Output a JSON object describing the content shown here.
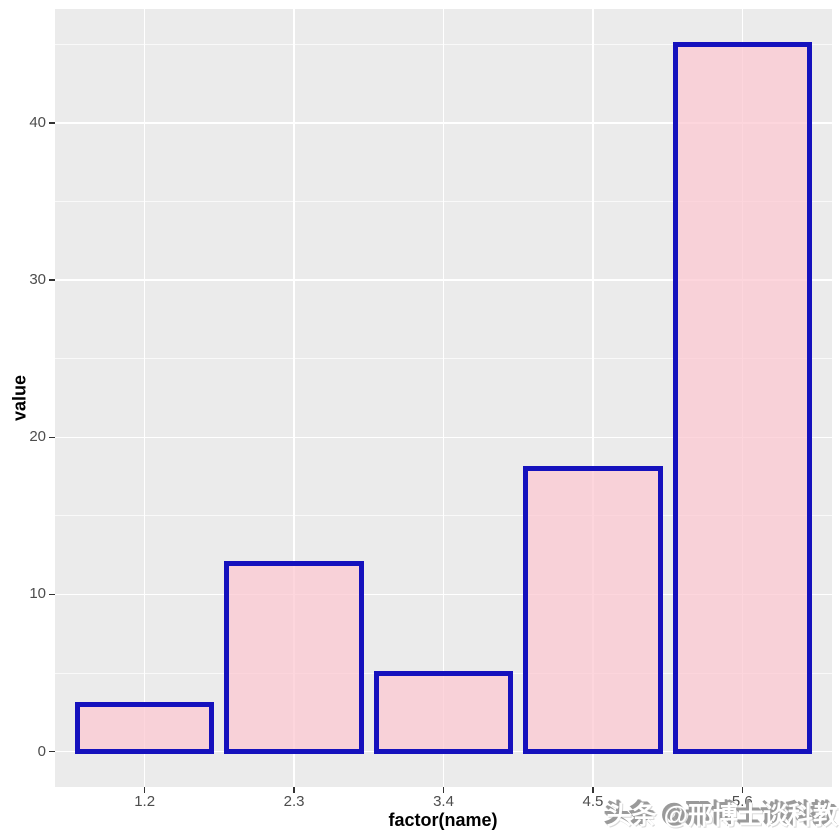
{
  "watermark": {
    "text": "头条 @邢博士谈科教"
  },
  "chart_data": {
    "type": "bar",
    "categories": [
      "1.2",
      "2.3",
      "3.4",
      "4.5",
      "5.6"
    ],
    "values": [
      3,
      12,
      5,
      18,
      45
    ],
    "title": "",
    "xlabel": "factor(name)",
    "ylabel": "value",
    "ylim": [
      -2.25,
      47.25
    ],
    "yticks_major": [
      0,
      10,
      20,
      30,
      40
    ],
    "yticks_minor": [
      5,
      15,
      25,
      35,
      45
    ],
    "grid": "on",
    "legend": "none",
    "bar_width_fraction": 0.9,
    "colors": {
      "panel_background": "#ebebeb",
      "gridline_major": "#ffffff",
      "gridline_minor": "#ffffff",
      "bar_fill": "rgba(252,198,208,0.72)",
      "bar_border": "#1511bd",
      "tick_label": "#4d4d4d",
      "axis_title": "#000000",
      "tick_mark": "#333333",
      "watermark_text": "#ffffff",
      "watermark_shadow": "#9a9a9a"
    }
  }
}
